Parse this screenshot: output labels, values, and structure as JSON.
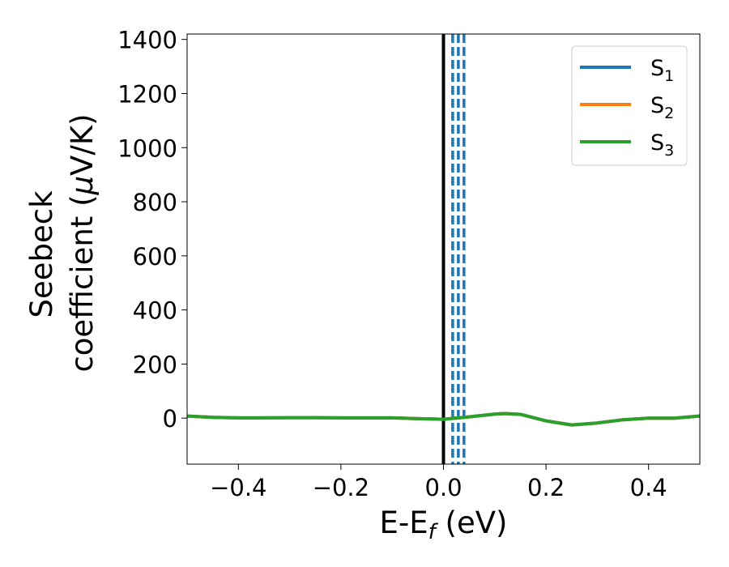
{
  "chart_data": {
    "type": "line",
    "xlabel": {
      "base": "E-E",
      "sub": "f",
      "rest": " (eV)"
    },
    "ylabel": {
      "line1": "Seebeck",
      "line2_pre": "coefficient  (",
      "line2_mu": "μ",
      "line2_post": "V/K)"
    },
    "xlim": [
      -0.5,
      0.5
    ],
    "ylim": [
      -170,
      1420
    ],
    "xticks": [
      -0.4,
      -0.2,
      0.0,
      0.2,
      0.4
    ],
    "xtick_labels": [
      "−0.4",
      "−0.2",
      "0.0",
      "0.2",
      "0.4"
    ],
    "yticks": [
      0,
      200,
      400,
      600,
      800,
      1000,
      1200,
      1400
    ],
    "ytick_labels": [
      "0",
      "200",
      "400",
      "600",
      "800",
      "1000",
      "1200",
      "1400"
    ],
    "legend_position": "top-right",
    "series": [
      {
        "name": "S",
        "sub": "1",
        "color": "#1f77b4",
        "x": [
          -0.5,
          -0.45,
          -0.4,
          -0.35,
          -0.3,
          -0.25,
          -0.2,
          -0.15,
          -0.1,
          -0.05,
          0.0,
          0.05,
          0.1,
          0.12,
          0.15,
          0.2,
          0.25,
          0.3,
          0.35,
          0.4,
          0.45,
          0.5
        ],
        "y": [
          8,
          3,
          1,
          1,
          2,
          2,
          1,
          1,
          1,
          -2,
          -4,
          5,
          15,
          17,
          14,
          -10,
          -25,
          -18,
          -6,
          0,
          0,
          8
        ]
      },
      {
        "name": "S",
        "sub": "2",
        "color": "#ff7f0e",
        "x": [
          -0.5,
          -0.45,
          -0.4,
          -0.35,
          -0.3,
          -0.25,
          -0.2,
          -0.15,
          -0.1,
          -0.05,
          0.0,
          0.05,
          0.1,
          0.12,
          0.15,
          0.2,
          0.25,
          0.3,
          0.35,
          0.4,
          0.45,
          0.5
        ],
        "y": [
          8,
          3,
          1,
          1,
          2,
          2,
          1,
          1,
          1,
          -2,
          -4,
          5,
          15,
          17,
          14,
          -10,
          -25,
          -18,
          -6,
          0,
          0,
          8
        ]
      },
      {
        "name": "S",
        "sub": "3",
        "color": "#2ca02c",
        "x": [
          -0.5,
          -0.45,
          -0.4,
          -0.35,
          -0.3,
          -0.25,
          -0.2,
          -0.15,
          -0.1,
          -0.05,
          0.0,
          0.05,
          0.1,
          0.12,
          0.15,
          0.2,
          0.25,
          0.3,
          0.35,
          0.4,
          0.45,
          0.5
        ],
        "y": [
          8,
          3,
          1,
          1,
          2,
          2,
          1,
          1,
          1,
          -2,
          -4,
          5,
          15,
          17,
          14,
          -10,
          -25,
          -18,
          -6,
          0,
          0,
          8
        ]
      }
    ],
    "vlines": [
      {
        "x": 0.0,
        "style": "solid",
        "color": "#000000"
      },
      {
        "x": 0.018,
        "style": "dashed",
        "color": "#1f77b4"
      },
      {
        "x": 0.029,
        "style": "dashed",
        "color": "#1f77b4"
      },
      {
        "x": 0.04,
        "style": "dashed",
        "color": "#1f77b4"
      }
    ]
  }
}
